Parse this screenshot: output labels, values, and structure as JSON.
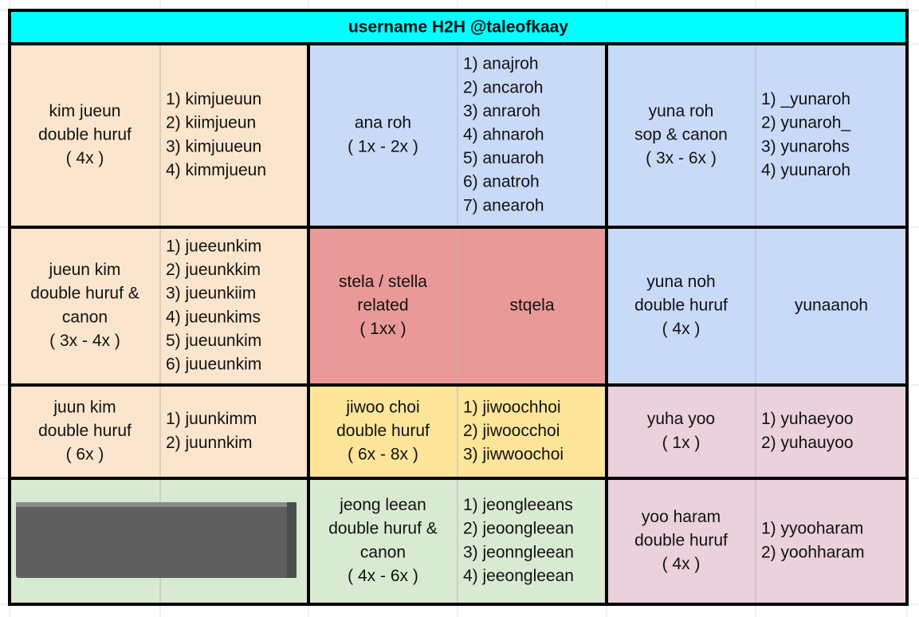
{
  "header": {
    "title": "username H2H @taleofkaay",
    "color": "#00ffff"
  },
  "rows": [
    [
      {
        "label": [
          "kim jueun",
          "double huruf",
          "( 4x )"
        ],
        "items": [
          "1) kimjueuun",
          "2) kiimjueun",
          "3) kimjuueun",
          "4) kimmjueun"
        ],
        "color": "#fce5cd"
      },
      {
        "label": [
          "ana roh",
          "( 1x - 2x )"
        ],
        "items": [
          "1) anajroh",
          "2) ancaroh",
          "3) anraroh",
          "4) ahnaroh",
          "5) anuaroh",
          "6) anatroh",
          "7) anearoh"
        ],
        "color": "#c9daf8"
      },
      {
        "label": [
          "yuna roh",
          "sop & canon",
          "( 3x - 6x )"
        ],
        "items": [
          "1) _yunaroh",
          "2) yunaroh_",
          "3) yunarohs",
          "4) yuunaroh"
        ],
        "color": "#c9daf8"
      }
    ],
    [
      {
        "label": [
          "jueun kim",
          "double huruf &",
          "canon",
          "( 3x - 4x )"
        ],
        "items": [
          "1) jueeunkim",
          "2) jueunkkim",
          "3) jueunkiim",
          "4) jueunkims",
          "5) jueuunkim",
          "6) juueunkim"
        ],
        "color": "#fce5cd"
      },
      {
        "label": [
          "stela / stella",
          "related",
          "( 1xx )"
        ],
        "items": [
          "stqela"
        ],
        "color": "#ea9999"
      },
      {
        "label": [
          "yuna noh",
          "double huruf",
          "( 4x )"
        ],
        "items": [
          "yunaanoh"
        ],
        "color": "#c9daf8"
      }
    ],
    [
      {
        "label": [
          "juun kim",
          "double huruf",
          "( 6x )"
        ],
        "items": [
          "1) juunkimm",
          "2) juunnkim"
        ],
        "color": "#fce5cd"
      },
      {
        "label": [
          "jiwoo choi",
          "double huruf",
          "( 6x - 8x )"
        ],
        "items": [
          "1) jiwoochhoi",
          "2) jiwoocchoi",
          "3) jiwwoochoi"
        ],
        "color": "#ffe599"
      },
      {
        "label": [
          "yuha yoo",
          "( 1x )"
        ],
        "items": [
          "1) yuhaeyoo",
          "2) yuhauyoo"
        ],
        "color": "#ead1dc"
      }
    ],
    [
      {
        "label": [],
        "items": [],
        "color": "#d9ead3"
      },
      {
        "label": [
          "jeong leean",
          "double huruf &",
          "canon",
          "( 4x - 6x )"
        ],
        "items": [
          "1) jeongleeans",
          "2) jeoongleean",
          "3) jeonngleean",
          "4) jeeongleean"
        ],
        "color": "#d9ead3"
      },
      {
        "label": [
          "yoo haram",
          "double huruf",
          "( 4x )"
        ],
        "items": [
          "1) yyooharam",
          "2) yoohharam"
        ],
        "color": "#ead1dc"
      }
    ]
  ]
}
